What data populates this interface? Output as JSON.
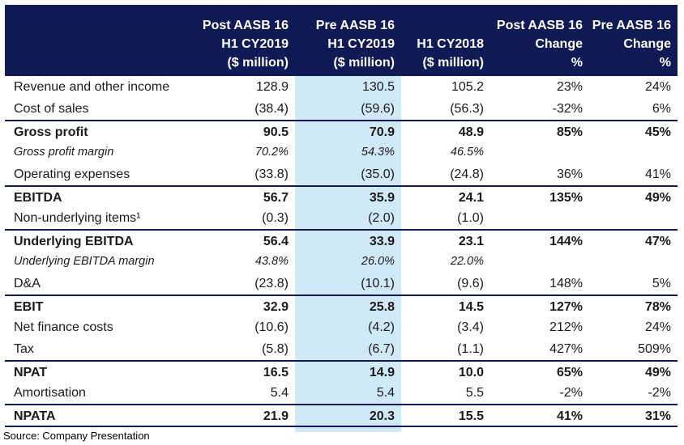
{
  "header": {
    "col1": [
      "Post AASB 16",
      "H1 CY2019",
      "($ million)"
    ],
    "col2": [
      "Pre AASB 16",
      "H1 CY2019",
      "($ million)"
    ],
    "col3": [
      "H1 CY2018",
      "($ million)"
    ],
    "col4": [
      "Post AASB 16",
      "Change",
      "%"
    ],
    "col5": [
      "Pre AASB 16",
      "Change",
      "%"
    ]
  },
  "rows": [
    {
      "label": "Revenue and other income",
      "v": [
        "128.9",
        "130.5",
        "105.2",
        "23%",
        "24%"
      ]
    },
    {
      "label": "Cost of sales",
      "v": [
        "(38.4)",
        "(59.6)",
        "(56.3)",
        "-32%",
        "6%"
      ]
    },
    {
      "label": "Gross profit",
      "v": [
        "90.5",
        "70.9",
        "48.9",
        "85%",
        "45%"
      ]
    },
    {
      "label": "Gross profit margin",
      "v": [
        "70.2%",
        "54.3%",
        "46.5%",
        "",
        ""
      ]
    },
    {
      "label": "Operating expenses",
      "v": [
        "(33.8)",
        "(35.0)",
        "(24.8)",
        "36%",
        "41%"
      ]
    },
    {
      "label": "EBITDA",
      "v": [
        "56.7",
        "35.9",
        "24.1",
        "135%",
        "49%"
      ]
    },
    {
      "label": "Non-underlying items¹",
      "v": [
        "(0.3)",
        "(2.0)",
        "(1.0)",
        "",
        ""
      ]
    },
    {
      "label": "Underlying EBITDA",
      "v": [
        "56.4",
        "33.9",
        "23.1",
        "144%",
        "47%"
      ]
    },
    {
      "label": "Underlying EBITDA margin",
      "v": [
        "43.8%",
        "26.0%",
        "22.0%",
        "",
        ""
      ]
    },
    {
      "label": "D&A",
      "v": [
        "(23.8)",
        "(10.1)",
        "(9.6)",
        "148%",
        "5%"
      ]
    },
    {
      "label": "EBIT",
      "v": [
        "32.9",
        "25.8",
        "14.5",
        "127%",
        "78%"
      ]
    },
    {
      "label": "Net finance costs",
      "v": [
        "(10.6)",
        "(4.2)",
        "(3.4)",
        "212%",
        "24%"
      ]
    },
    {
      "label": "Tax",
      "v": [
        "(5.8)",
        "(6.7)",
        "(1.1)",
        "427%",
        "509%"
      ]
    },
    {
      "label": "NPAT",
      "v": [
        "16.5",
        "14.9",
        "10.0",
        "65%",
        "49%"
      ]
    },
    {
      "label": "Amortisation",
      "v": [
        "5.4",
        "5.4",
        "5.5",
        "-2%",
        "-2%"
      ]
    },
    {
      "label": "NPATA",
      "v": [
        "21.9",
        "20.3",
        "15.5",
        "41%",
        "31%"
      ]
    }
  ],
  "source": "Source: Company Presentation"
}
